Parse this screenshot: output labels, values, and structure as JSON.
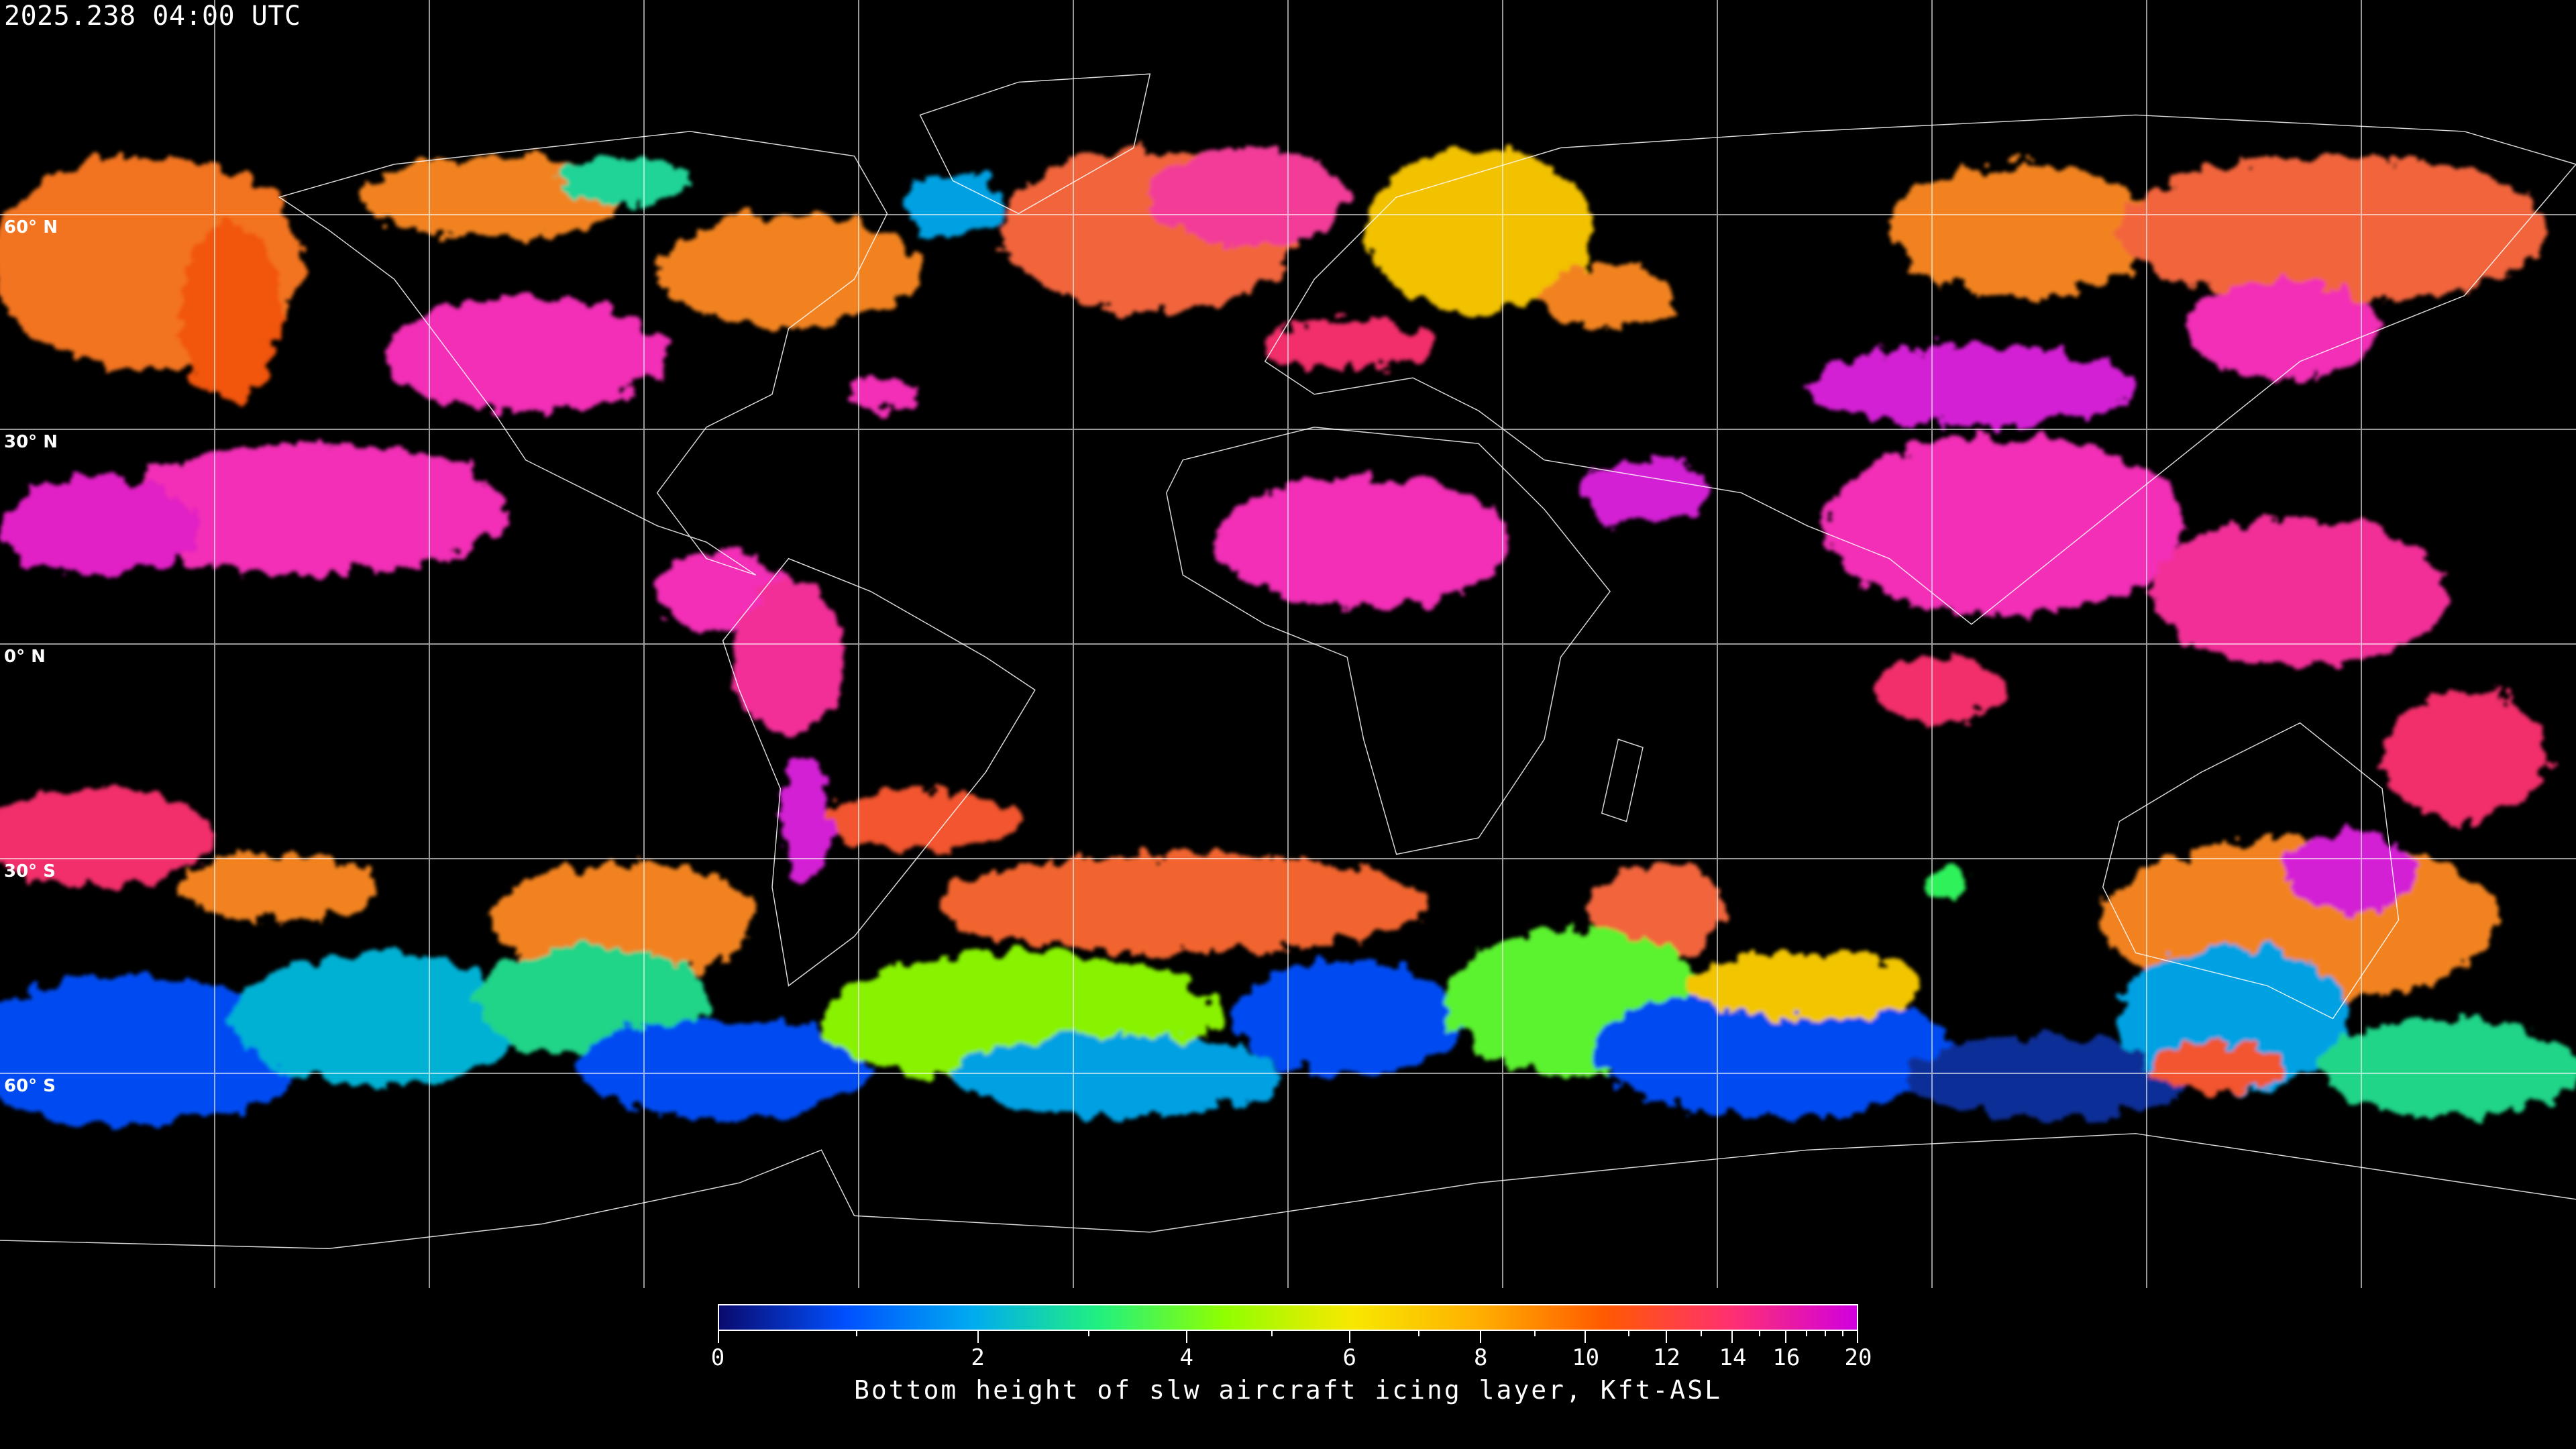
{
  "header": {
    "timestamp": "2025.238 04:00 UTC"
  },
  "map": {
    "projection": "equirectangular",
    "background": "#000000",
    "grid_color": "#ffffff",
    "coastline_color": "#ffffff",
    "latitude_labels": [
      "60° N",
      "30° N",
      "0° N",
      "30° S",
      "60° S"
    ]
  },
  "colorbar": {
    "title": "Bottom height of slw aircraft icing layer, Kft-ASL",
    "tick_labels": [
      "0",
      "2",
      "4",
      "6",
      "8",
      "10",
      "12",
      "14",
      "16",
      "20"
    ],
    "range": [
      0,
      20
    ],
    "colors": [
      "#0a0a6e",
      "#0050ff",
      "#00aaf0",
      "#20f080",
      "#90ff00",
      "#f8e800",
      "#ffb000",
      "#ff5a00",
      "#ff3070",
      "#d000e0"
    ]
  }
}
